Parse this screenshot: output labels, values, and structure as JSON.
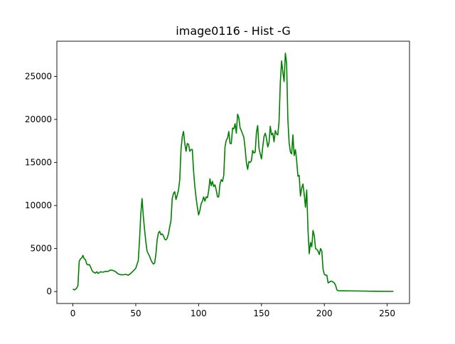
{
  "chart_data": {
    "type": "line",
    "title": "image0116 - Hist -G",
    "xlabel": "",
    "ylabel": "",
    "xlim": [
      -12.75,
      267.75
    ],
    "ylim": [
      -1385,
      29085
    ],
    "x_ticks": [
      0,
      50,
      100,
      150,
      200,
      250
    ],
    "y_ticks": [
      0,
      5000,
      10000,
      15000,
      20000,
      25000
    ],
    "grid": false,
    "series": [
      {
        "color": "#008000",
        "points": [
          [
            0,
            300
          ],
          [
            1,
            200
          ],
          [
            2,
            250
          ],
          [
            3,
            400
          ],
          [
            4,
            700
          ],
          [
            5,
            3500
          ],
          [
            6,
            3800
          ],
          [
            7,
            3900
          ],
          [
            8,
            4200
          ],
          [
            9,
            3800
          ],
          [
            10,
            3700
          ],
          [
            11,
            3200
          ],
          [
            12,
            3100
          ],
          [
            13,
            3150
          ],
          [
            14,
            2900
          ],
          [
            15,
            2500
          ],
          [
            16,
            2300
          ],
          [
            17,
            2200
          ],
          [
            18,
            2150
          ],
          [
            19,
            2300
          ],
          [
            20,
            2100
          ],
          [
            22,
            2300
          ],
          [
            24,
            2250
          ],
          [
            26,
            2350
          ],
          [
            28,
            2350
          ],
          [
            30,
            2500
          ],
          [
            32,
            2450
          ],
          [
            34,
            2300
          ],
          [
            36,
            2050
          ],
          [
            38,
            1950
          ],
          [
            40,
            1950
          ],
          [
            42,
            2000
          ],
          [
            44,
            1900
          ],
          [
            46,
            2100
          ],
          [
            48,
            2400
          ],
          [
            50,
            2700
          ],
          [
            52,
            3600
          ],
          [
            53,
            6000
          ],
          [
            54,
            9000
          ],
          [
            55,
            10800
          ],
          [
            56,
            8800
          ],
          [
            57,
            7200
          ],
          [
            58,
            5800
          ],
          [
            59,
            4700
          ],
          [
            60,
            4400
          ],
          [
            61,
            4100
          ],
          [
            62,
            3700
          ],
          [
            63,
            3400
          ],
          [
            64,
            3200
          ],
          [
            65,
            3300
          ],
          [
            66,
            4300
          ],
          [
            67,
            6000
          ],
          [
            68,
            6800
          ],
          [
            69,
            7000
          ],
          [
            70,
            6600
          ],
          [
            71,
            6700
          ],
          [
            72,
            6500
          ],
          [
            73,
            6100
          ],
          [
            74,
            6000
          ],
          [
            75,
            6200
          ],
          [
            76,
            6700
          ],
          [
            77,
            7500
          ],
          [
            78,
            8200
          ],
          [
            79,
            10800
          ],
          [
            80,
            11400
          ],
          [
            81,
            11600
          ],
          [
            82,
            10700
          ],
          [
            83,
            11200
          ],
          [
            84,
            11800
          ],
          [
            85,
            13000
          ],
          [
            86,
            16500
          ],
          [
            87,
            18000
          ],
          [
            88,
            18600
          ],
          [
            89,
            17200
          ],
          [
            90,
            16300
          ],
          [
            91,
            17200
          ],
          [
            92,
            17100
          ],
          [
            93,
            16300
          ],
          [
            94,
            16500
          ],
          [
            95,
            16500
          ],
          [
            96,
            14000
          ],
          [
            97,
            12200
          ],
          [
            98,
            10900
          ],
          [
            99,
            9800
          ],
          [
            100,
            8900
          ],
          [
            101,
            9400
          ],
          [
            102,
            10200
          ],
          [
            103,
            10500
          ],
          [
            104,
            11000
          ],
          [
            105,
            10500
          ],
          [
            106,
            11000
          ],
          [
            107,
            10900
          ],
          [
            108,
            11700
          ],
          [
            109,
            13100
          ],
          [
            110,
            12300
          ],
          [
            111,
            12800
          ],
          [
            112,
            12200
          ],
          [
            113,
            12400
          ],
          [
            114,
            11800
          ],
          [
            115,
            11000
          ],
          [
            116,
            11000
          ],
          [
            117,
            12500
          ],
          [
            118,
            13000
          ],
          [
            119,
            12800
          ],
          [
            120,
            13500
          ],
          [
            121,
            16800
          ],
          [
            122,
            17600
          ],
          [
            123,
            17800
          ],
          [
            124,
            18600
          ],
          [
            125,
            17200
          ],
          [
            126,
            17200
          ],
          [
            127,
            19000
          ],
          [
            128,
            18900
          ],
          [
            129,
            19500
          ],
          [
            130,
            18400
          ],
          [
            131,
            20600
          ],
          [
            132,
            20200
          ],
          [
            133,
            19000
          ],
          [
            134,
            18700
          ],
          [
            135,
            18300
          ],
          [
            136,
            17900
          ],
          [
            137,
            16600
          ],
          [
            138,
            15000
          ],
          [
            139,
            14200
          ],
          [
            140,
            15100
          ],
          [
            141,
            15000
          ],
          [
            142,
            15200
          ],
          [
            143,
            16400
          ],
          [
            144,
            16100
          ],
          [
            145,
            16200
          ],
          [
            146,
            18500
          ],
          [
            147,
            19300
          ],
          [
            148,
            16700
          ],
          [
            149,
            16000
          ],
          [
            150,
            15400
          ],
          [
            151,
            16800
          ],
          [
            152,
            18000
          ],
          [
            153,
            18400
          ],
          [
            154,
            17800
          ],
          [
            155,
            16800
          ],
          [
            156,
            17300
          ],
          [
            157,
            19200
          ],
          [
            158,
            18200
          ],
          [
            159,
            18400
          ],
          [
            160,
            17400
          ],
          [
            161,
            18700
          ],
          [
            162,
            18300
          ],
          [
            163,
            18200
          ],
          [
            164,
            19800
          ],
          [
            165,
            24300
          ],
          [
            166,
            26800
          ],
          [
            167,
            25500
          ],
          [
            168,
            24400
          ],
          [
            169,
            27700
          ],
          [
            170,
            26500
          ],
          [
            171,
            20000
          ],
          [
            172,
            17300
          ],
          [
            173,
            16200
          ],
          [
            174,
            16000
          ],
          [
            175,
            18200
          ],
          [
            176,
            15800
          ],
          [
            177,
            16500
          ],
          [
            178,
            15200
          ],
          [
            179,
            13400
          ],
          [
            180,
            13500
          ],
          [
            181,
            11100
          ],
          [
            182,
            12000
          ],
          [
            183,
            12500
          ],
          [
            184,
            11300
          ],
          [
            185,
            9800
          ],
          [
            186,
            11800
          ],
          [
            187,
            7200
          ],
          [
            188,
            4400
          ],
          [
            189,
            5700
          ],
          [
            190,
            5200
          ],
          [
            191,
            7100
          ],
          [
            192,
            6500
          ],
          [
            193,
            5000
          ],
          [
            194,
            4900
          ],
          [
            195,
            4700
          ],
          [
            196,
            4300
          ],
          [
            197,
            5000
          ],
          [
            198,
            4700
          ],
          [
            199,
            2600
          ],
          [
            200,
            2000
          ],
          [
            201,
            1900
          ],
          [
            202,
            1900
          ],
          [
            203,
            1000
          ],
          [
            204,
            1100
          ],
          [
            205,
            1200
          ],
          [
            206,
            1200
          ],
          [
            207,
            1100
          ],
          [
            208,
            1000
          ],
          [
            209,
            700
          ],
          [
            210,
            200
          ],
          [
            211,
            100
          ],
          [
            215,
            90
          ],
          [
            220,
            80
          ],
          [
            230,
            60
          ],
          [
            240,
            30
          ],
          [
            255,
            20
          ]
        ]
      }
    ]
  }
}
